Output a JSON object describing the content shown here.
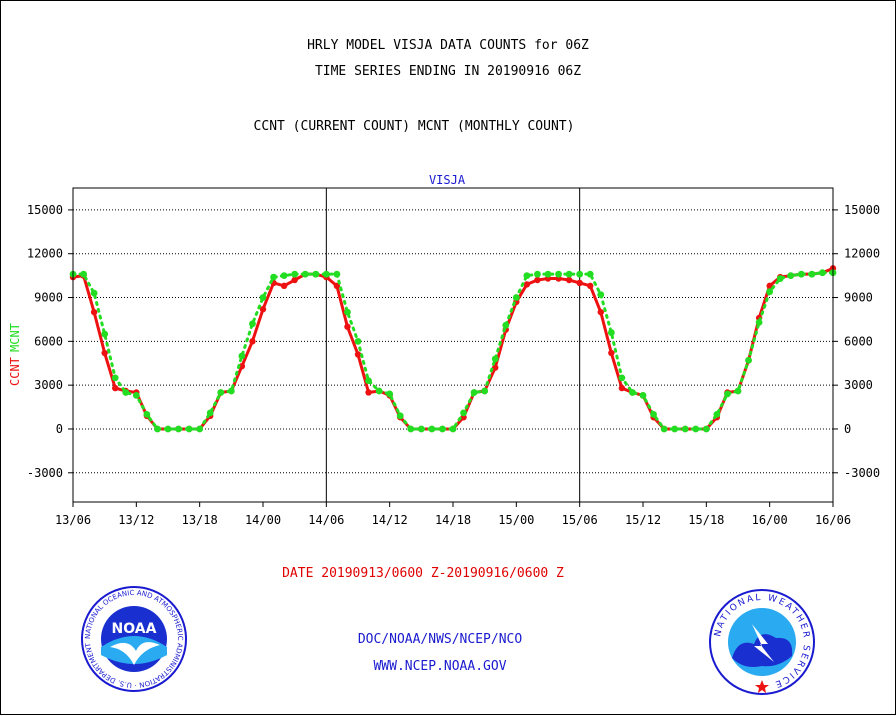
{
  "header": {
    "title_line1": "HRLY MODEL VISJA DATA COUNTS for 06Z",
    "title_line2": "TIME SERIES ENDING IN 20190916 06Z",
    "title_line3": "CCNT (CURRENT COUNT) MCNT (MONTHLY COUNT)"
  },
  "footer": {
    "date_range": "DATE 20190913/0600 Z-20190916/0600 Z",
    "org": "DOC/NOAA/NWS/NCEP/NCO",
    "website": "WWW.NCEP.NOAA.GOV"
  },
  "logos": {
    "noaa": {
      "label": "NOAA",
      "ring_text": "NATIONAL OCEANIC AND ATMOSPHERIC ADMINISTRATION · U.S. DEPARTMENT OF COMMERCE"
    },
    "nws": {
      "ring_text": "NATIONAL WEATHER SERVICE"
    }
  },
  "chart_data": {
    "type": "line",
    "title": "VISJA",
    "ylabel_series": [
      "CCNT",
      "MCNT"
    ],
    "ylim": [
      -5000,
      16500
    ],
    "yticks": [
      -3000,
      0,
      3000,
      6000,
      9000,
      12000,
      15000
    ],
    "ytick_labels": [
      "-3000",
      "0",
      "3000",
      "6000",
      "9000",
      "12000",
      "15000"
    ],
    "xlim": [
      0,
      72
    ],
    "xticks": [
      0,
      6,
      12,
      18,
      24,
      30,
      36,
      42,
      48,
      54,
      60,
      66,
      72
    ],
    "xtick_labels": [
      "13/06",
      "13/12",
      "13/18",
      "14/00",
      "14/06",
      "14/12",
      "14/18",
      "15/00",
      "15/06",
      "15/12",
      "15/18",
      "16/00",
      "16/06"
    ],
    "day_dividers": [
      24,
      48
    ],
    "grid": true,
    "colors": {
      "CCNT": "#ee1111",
      "MCNT": "#22dd22",
      "title": "#1a1ad0"
    },
    "series": [
      {
        "name": "CCNT",
        "x": [
          0,
          1,
          2,
          3,
          4,
          5,
          6,
          7,
          8,
          9,
          10,
          11,
          12,
          13,
          14,
          15,
          16,
          17,
          18,
          19,
          20,
          21,
          22,
          23,
          24,
          25,
          26,
          27,
          28,
          29,
          30,
          31,
          32,
          33,
          34,
          35,
          36,
          37,
          38,
          39,
          40,
          41,
          42,
          43,
          44,
          45,
          46,
          47,
          48,
          49,
          50,
          51,
          52,
          53,
          54,
          55,
          56,
          57,
          58,
          59,
          60,
          61,
          62,
          63,
          64,
          65,
          66,
          67,
          68,
          69,
          70,
          71,
          72
        ],
        "values": [
          10400,
          10500,
          8000,
          5200,
          2800,
          2600,
          2500,
          900,
          0,
          0,
          0,
          0,
          0,
          900,
          2500,
          2600,
          4300,
          6000,
          8200,
          10000,
          9800,
          10200,
          10600,
          10600,
          10400,
          9800,
          7000,
          5100,
          2500,
          2600,
          2300,
          800,
          0,
          0,
          0,
          0,
          0,
          800,
          2500,
          2600,
          4200,
          6800,
          8700,
          9900,
          10200,
          10300,
          10300,
          10200,
          10000,
          9800,
          8000,
          5200,
          2800,
          2500,
          2300,
          800,
          0,
          0,
          0,
          0,
          0,
          800,
          2500,
          2600,
          4700,
          7600,
          9800,
          10400,
          10500,
          10600,
          10600,
          10700,
          11000
        ]
      },
      {
        "name": "MCNT",
        "x": [
          0,
          1,
          2,
          3,
          4,
          5,
          6,
          7,
          8,
          9,
          10,
          11,
          12,
          13,
          14,
          15,
          16,
          17,
          18,
          19,
          20,
          21,
          22,
          23,
          24,
          25,
          26,
          27,
          28,
          29,
          30,
          31,
          32,
          33,
          34,
          35,
          36,
          37,
          38,
          39,
          40,
          41,
          42,
          43,
          44,
          45,
          46,
          47,
          48,
          49,
          50,
          51,
          52,
          53,
          54,
          55,
          56,
          57,
          58,
          59,
          60,
          61,
          62,
          63,
          64,
          65,
          66,
          67,
          68,
          69,
          70,
          71,
          72
        ],
        "values": [
          10600,
          10600,
          9300,
          6500,
          3500,
          2500,
          2300,
          1000,
          0,
          0,
          0,
          0,
          0,
          1100,
          2500,
          2600,
          5000,
          7200,
          9000,
          10400,
          10500,
          10600,
          10600,
          10600,
          10600,
          10600,
          8000,
          6000,
          3300,
          2600,
          2400,
          900,
          0,
          0,
          0,
          0,
          0,
          1100,
          2500,
          2600,
          4800,
          7100,
          9000,
          10500,
          10600,
          10600,
          10600,
          10600,
          10600,
          10600,
          9200,
          6600,
          3500,
          2500,
          2300,
          1000,
          0,
          0,
          0,
          0,
          0,
          1000,
          2400,
          2600,
          4700,
          7300,
          9400,
          10300,
          10500,
          10600,
          10600,
          10700,
          10700
        ]
      }
    ]
  }
}
